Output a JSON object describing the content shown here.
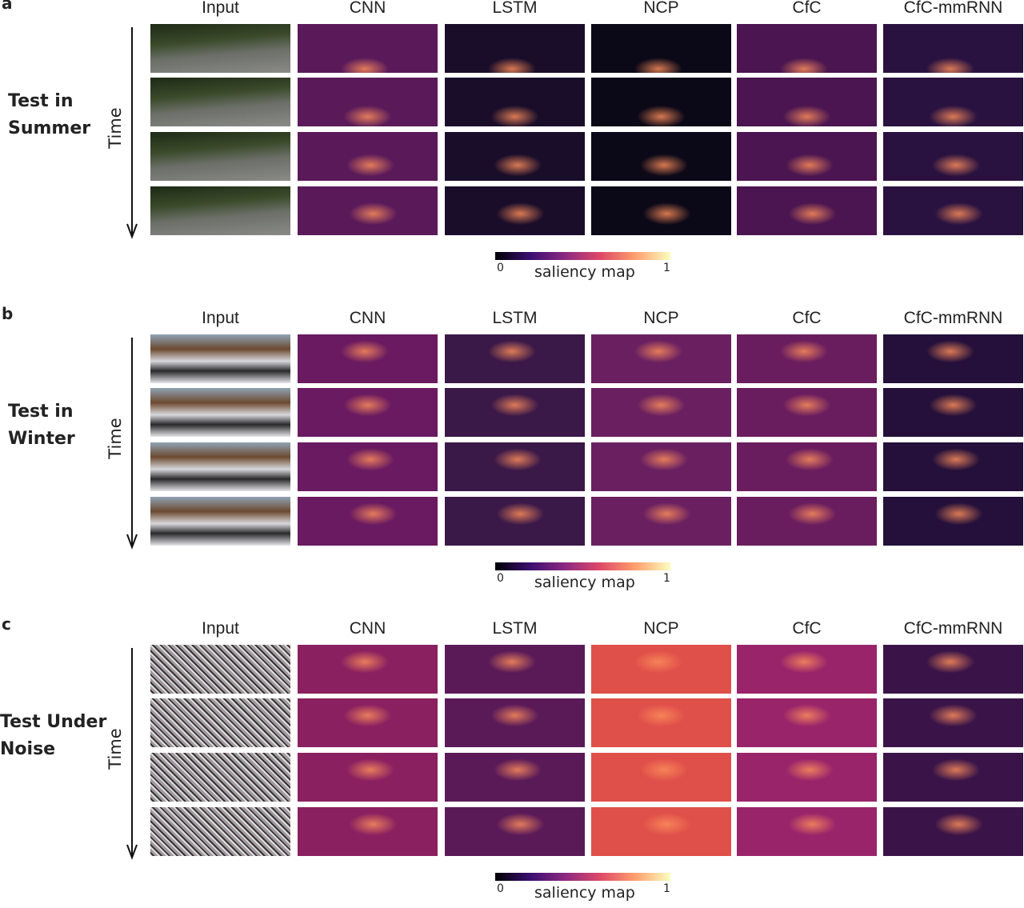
{
  "panels": [
    {
      "letter": "a",
      "row_label": [
        "Test in",
        "Summer"
      ],
      "time_label": "Time",
      "columns": [
        "Input",
        "CNN",
        "LSTM",
        "NCP",
        "CfC",
        "CfC-mmRNN"
      ],
      "colorbar": {
        "min": 0,
        "label": "saliency map",
        "max": 1
      }
    },
    {
      "letter": "b",
      "row_label": [
        "Test in",
        "Winter"
      ],
      "time_label": "Time",
      "columns": [
        "Input",
        "CNN",
        "LSTM",
        "NCP",
        "CfC",
        "CfC-mmRNN"
      ],
      "colorbar": {
        "min": 0,
        "label": "saliency map",
        "max": 1
      }
    },
    {
      "letter": "c",
      "row_label": [
        "Test Under",
        "Noise"
      ],
      "time_label": "Time",
      "columns": [
        "Input",
        "CNN",
        "LSTM",
        "NCP",
        "CfC",
        "CfC-mmRNN"
      ],
      "colorbar": {
        "min": 0,
        "label": "saliency map",
        "max": 1
      }
    }
  ]
}
